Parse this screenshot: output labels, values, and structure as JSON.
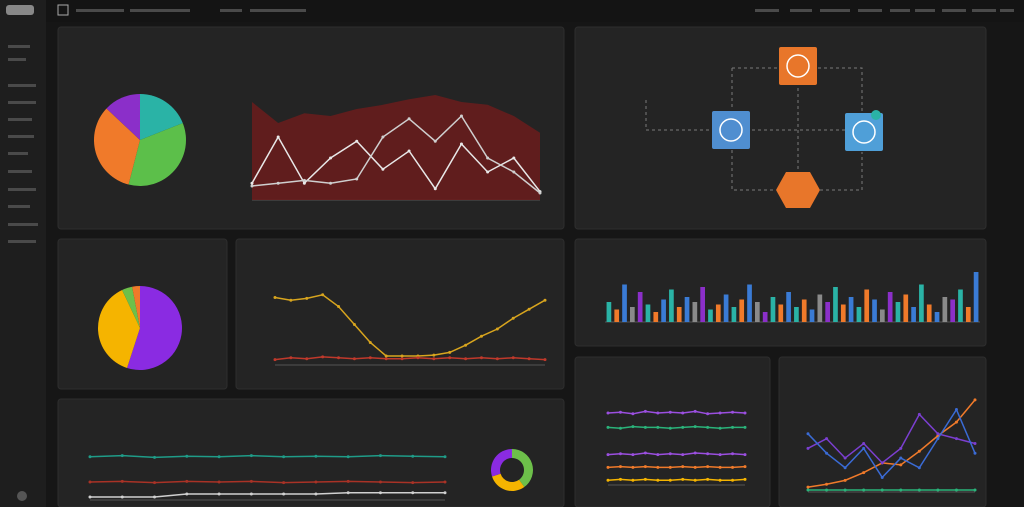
{
  "chart_data": [
    {
      "type": "pie",
      "values": [
        19,
        35,
        33,
        13
      ],
      "colors": [
        "#2ab3a6",
        "#5cbf4a",
        "#f07a2a",
        "#8b2fc9"
      ]
    },
    {
      "type": "line",
      "ylim": [
        0,
        100
      ],
      "series": [
        {
          "kind": "area",
          "color": "#6b1c1c",
          "values": [
            70,
            55,
            62,
            60,
            65,
            68,
            72,
            75,
            70,
            68,
            60,
            48
          ]
        },
        {
          "kind": "line",
          "color": "#e8e8e8",
          "values": [
            12,
            45,
            12,
            30,
            42,
            22,
            35,
            8,
            40,
            20,
            30,
            6
          ]
        },
        {
          "kind": "line",
          "color": "#cfcfcf",
          "values": [
            10,
            12,
            14,
            12,
            15,
            45,
            58,
            42,
            60,
            30,
            20,
            5
          ]
        }
      ]
    },
    {
      "type": "pie",
      "values": [
        55,
        38,
        4,
        3
      ],
      "colors": [
        "#8a2be2",
        "#f5b400",
        "#6dc04a",
        "#f07a2a"
      ]
    },
    {
      "type": "line",
      "ylim": [
        0,
        100
      ],
      "series": [
        {
          "kind": "line",
          "color": "#d8a51e",
          "values": [
            75,
            72,
            74,
            78,
            65,
            45,
            25,
            10,
            10,
            10,
            11,
            14,
            22,
            32,
            40,
            52,
            62,
            72
          ]
        },
        {
          "kind": "line",
          "color": "#c0392b",
          "values": [
            6,
            8,
            7,
            9,
            8,
            7,
            8,
            7,
            7,
            8,
            7,
            8,
            7,
            8,
            7,
            8,
            7,
            6
          ]
        }
      ]
    },
    {
      "type": "bar",
      "ylim": [
        0,
        100
      ],
      "values": [
        40,
        25,
        75,
        30,
        60,
        35,
        20,
        45,
        65,
        30,
        50,
        40,
        70,
        25,
        35,
        55,
        30,
        45,
        75,
        40,
        20,
        50,
        35,
        60,
        30,
        45,
        25,
        55,
        40,
        70,
        35,
        50,
        30,
        65,
        45,
        25,
        60,
        40,
        55,
        30,
        75,
        35,
        20,
        50,
        45,
        65,
        30,
        100
      ],
      "colors": [
        "#2ab3a6",
        "#f07a2a",
        "#3a7bd5",
        "#8a8a8a",
        "#8b2fc9",
        "#2ab3a6",
        "#f07a2a",
        "#3a7bd5"
      ]
    },
    {
      "type": "line",
      "ylim": [
        0,
        100
      ],
      "series": [
        {
          "kind": "line",
          "color": "#9b4fe0",
          "values": [
            90,
            91,
            89,
            92,
            90,
            91,
            90,
            92,
            89,
            90,
            91,
            90
          ]
        },
        {
          "kind": "line",
          "color": "#2ab37a",
          "values": [
            72,
            71,
            73,
            72,
            72,
            71,
            72,
            73,
            72,
            71,
            72,
            72
          ]
        },
        {
          "kind": "line",
          "color": "#9b4fe0",
          "values": [
            38,
            39,
            38,
            40,
            38,
            39,
            38,
            40,
            39,
            38,
            39,
            38
          ]
        },
        {
          "kind": "line",
          "color": "#f07a2a",
          "values": [
            22,
            23,
            22,
            23,
            22,
            22,
            23,
            22,
            23,
            22,
            22,
            23
          ]
        },
        {
          "kind": "line",
          "color": "#f5b400",
          "values": [
            6,
            7,
            6,
            7,
            6,
            6,
            7,
            6,
            7,
            6,
            6,
            7
          ]
        }
      ]
    },
    {
      "type": "line",
      "ylim": [
        0,
        100
      ],
      "series": [
        {
          "kind": "line",
          "color": "#f07a2a",
          "values": [
            5,
            8,
            12,
            20,
            30,
            28,
            42,
            58,
            72,
            95
          ]
        },
        {
          "kind": "line",
          "color": "#7b3fd0",
          "values": [
            45,
            55,
            35,
            50,
            30,
            45,
            80,
            60,
            55,
            50
          ]
        },
        {
          "kind": "line",
          "color": "#3a6bd5",
          "values": [
            60,
            40,
            25,
            45,
            15,
            35,
            25,
            55,
            85,
            40
          ]
        },
        {
          "kind": "line",
          "color": "#2ab37a",
          "values": [
            2,
            2,
            2,
            2,
            2,
            2,
            2,
            2,
            2,
            2
          ]
        }
      ]
    },
    {
      "type": "line",
      "ylim": [
        0,
        100
      ],
      "series": [
        {
          "kind": "line",
          "color": "#1f9c88",
          "values": [
            72,
            74,
            71,
            73,
            72,
            74,
            72,
            73,
            72,
            74,
            73,
            72
          ]
        },
        {
          "kind": "line",
          "color": "#a93226",
          "values": [
            30,
            31,
            29,
            31,
            30,
            31,
            29,
            30,
            31,
            30,
            29,
            30
          ]
        },
        {
          "kind": "line",
          "color": "#d0d0d0",
          "values": [
            5,
            5,
            5,
            10,
            10,
            10,
            10,
            10,
            12,
            12,
            12,
            12
          ]
        }
      ]
    },
    {
      "type": "donut",
      "values": [
        40,
        30,
        30
      ],
      "colors": [
        "#6dc04a",
        "#f5b400",
        "#8a2be2"
      ]
    }
  ]
}
